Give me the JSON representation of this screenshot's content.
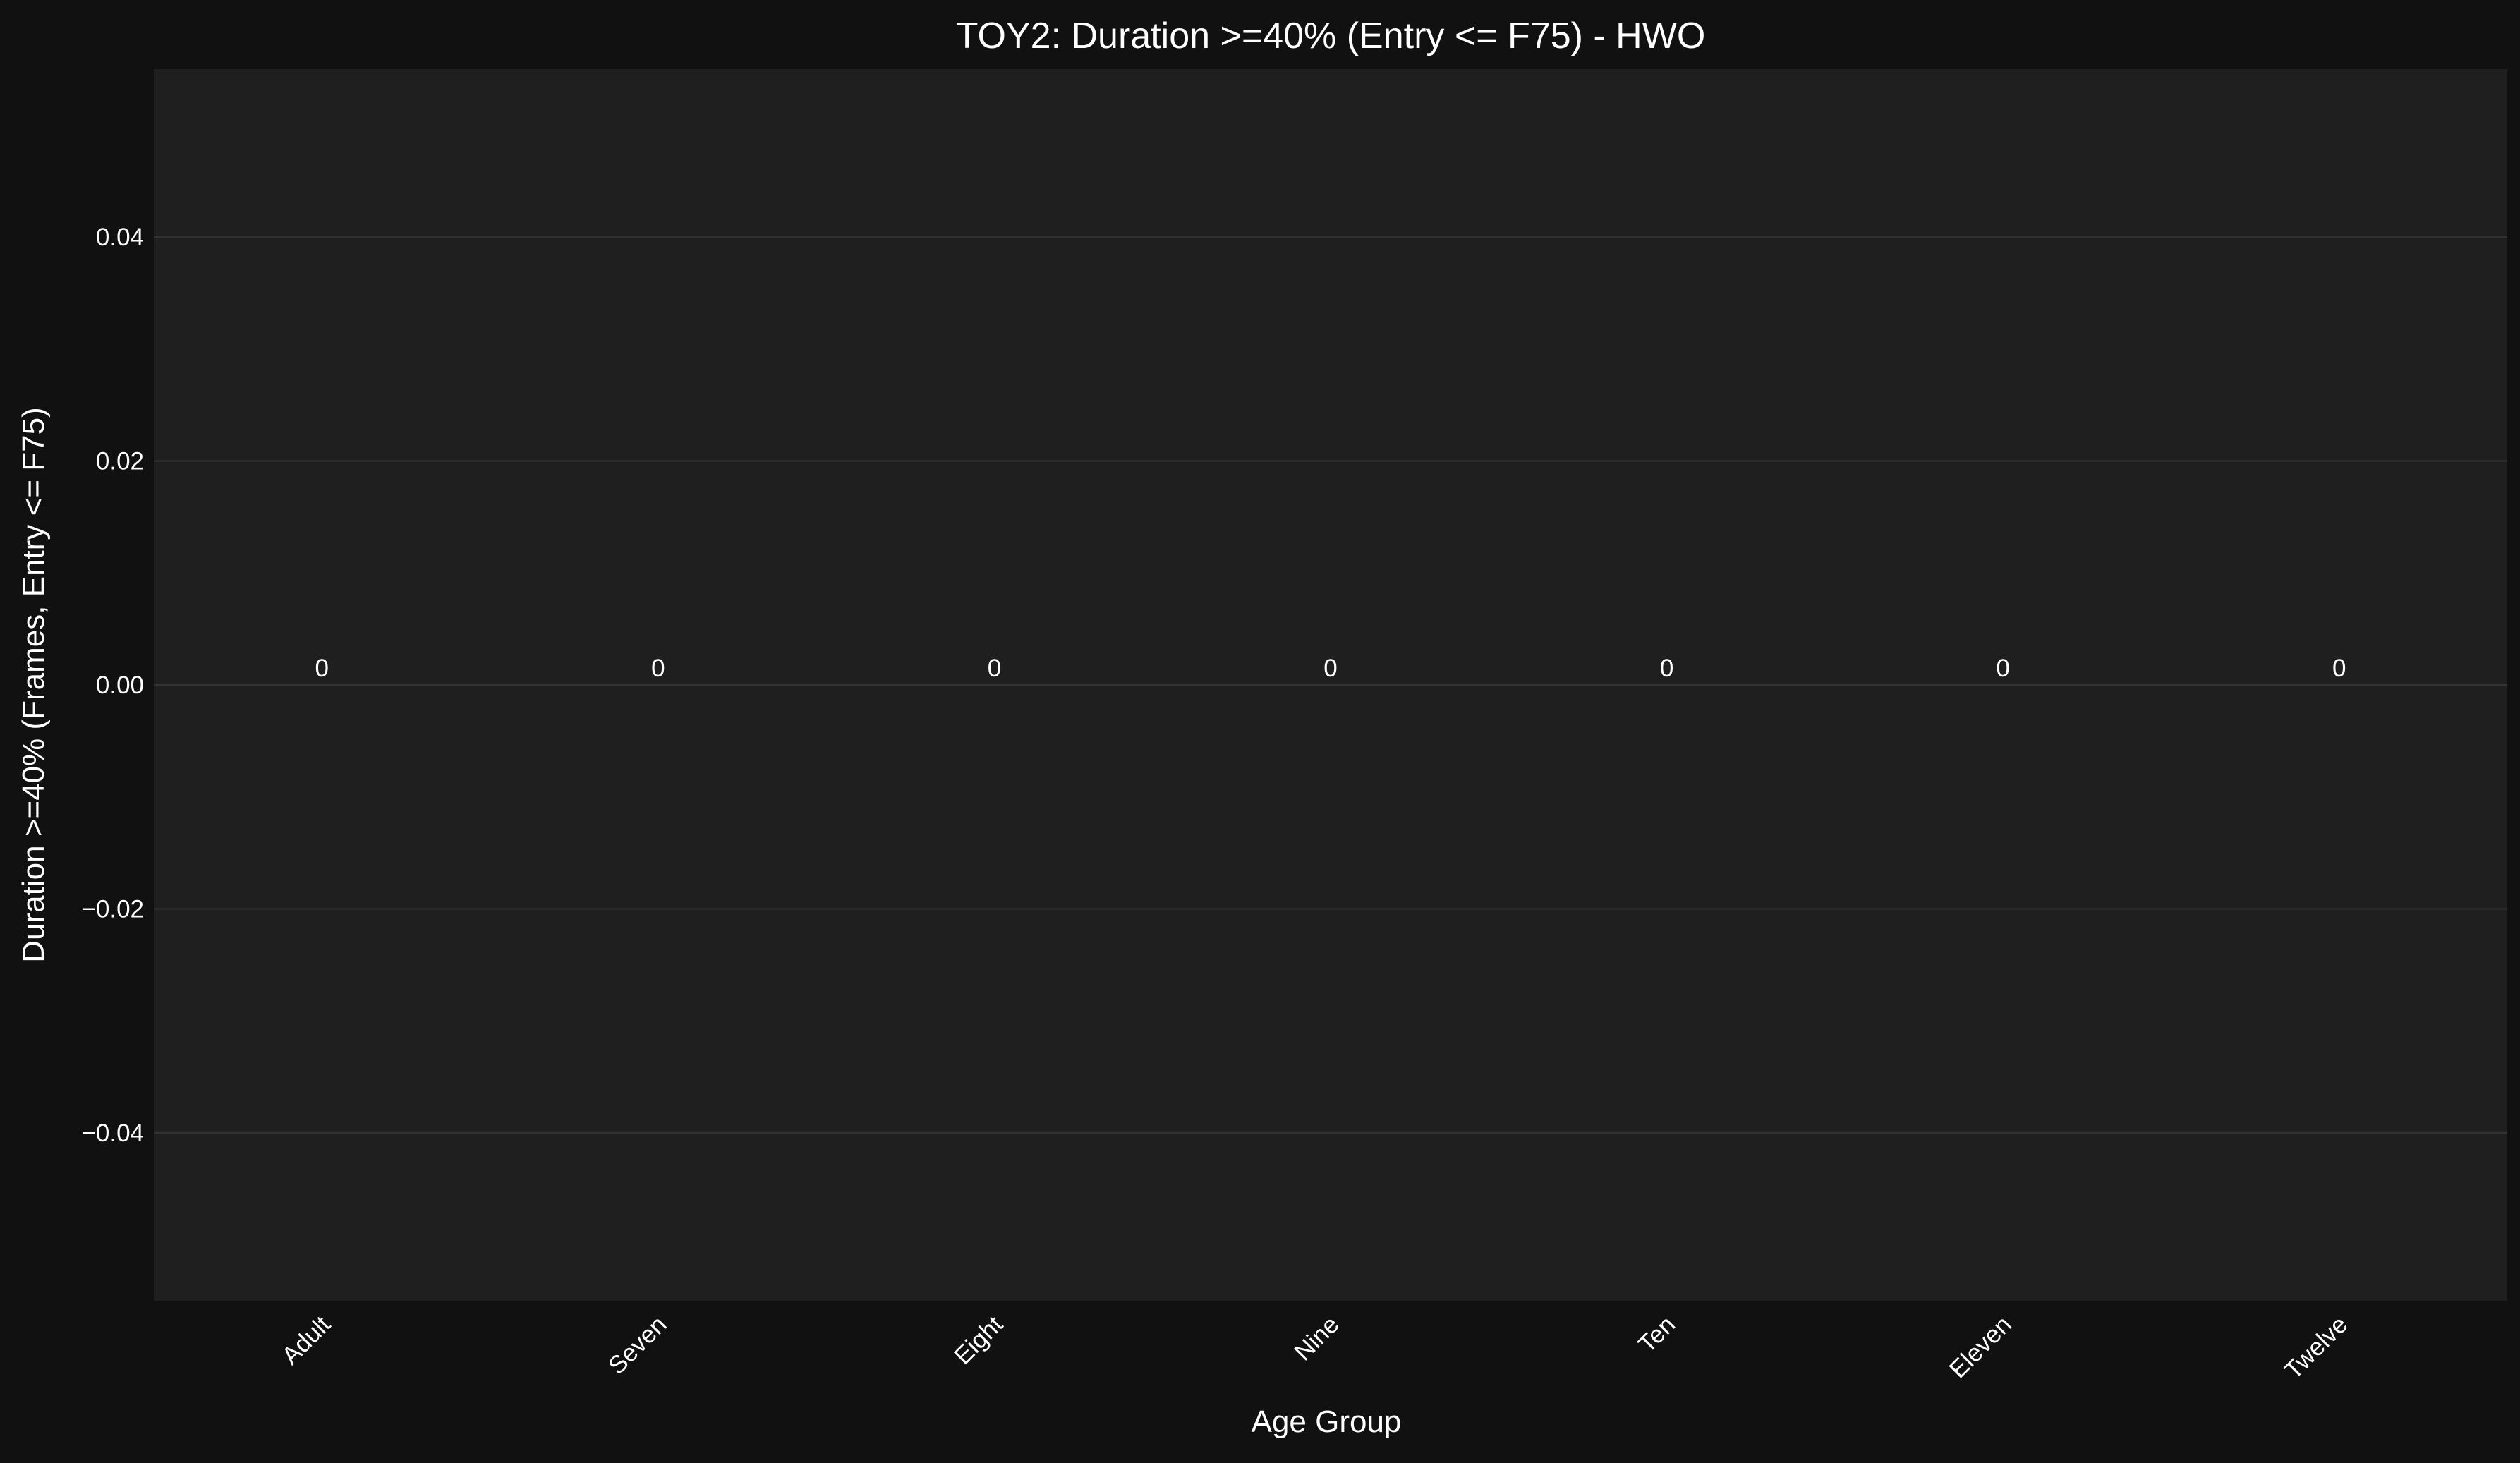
{
  "chart_data": {
    "type": "bar",
    "title": "TOY2: Duration >=40% (Entry <= F75) - HWO",
    "xlabel": "Age Group",
    "ylabel": "Duration >=40% (Frames, Entry <= F75)",
    "categories": [
      "Adult",
      "Seven",
      "Eight",
      "Nine",
      "Ten",
      "Eleven",
      "Twelve"
    ],
    "values": [
      0,
      0,
      0,
      0,
      0,
      0,
      0
    ],
    "data_labels": [
      "0",
      "0",
      "0",
      "0",
      "0",
      "0",
      "0"
    ],
    "ylim": [
      -0.055,
      0.055
    ],
    "yticks": [
      -0.04,
      -0.02,
      0.0,
      0.02,
      0.04
    ],
    "ytick_labels": [
      "−0.04",
      "−0.02",
      "0.00",
      "0.02",
      "0.04"
    ],
    "grid": "horizontal",
    "legend": "none"
  },
  "colors": {
    "figure_background": "#111111",
    "plot_background": "#1f1f1f",
    "grid": "#333333",
    "text": "#ffffff"
  }
}
